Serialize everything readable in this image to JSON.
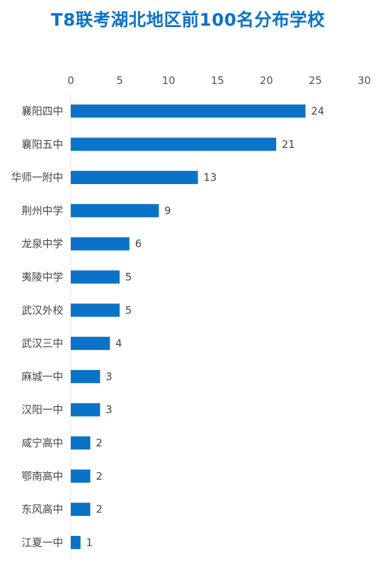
{
  "colors": {
    "title": "#0a73c8",
    "bar": "#0a73c8",
    "text": "#444444"
  },
  "chart_data": {
    "type": "bar",
    "orientation": "horizontal",
    "title": "T8联考湖北地区前100名分布学校",
    "xlabel": "",
    "ylabel": "",
    "xlim": [
      0,
      30
    ],
    "x_ticks": [
      0,
      5,
      10,
      15,
      20,
      25,
      30
    ],
    "x_axis_position": "top",
    "grid": false,
    "legend": "none",
    "categories": [
      "襄阳四中",
      "襄阳五中",
      "华师一附中",
      "荆州中学",
      "龙泉中学",
      "夷陵中学",
      "武汉外校",
      "武汉三中",
      "麻城一中",
      "汉阳一中",
      "咸宁高中",
      "鄂南高中",
      "东风高中",
      "江夏一中"
    ],
    "values": [
      24,
      21,
      13,
      9,
      6,
      5,
      5,
      4,
      3,
      3,
      2,
      2,
      2,
      1
    ]
  }
}
